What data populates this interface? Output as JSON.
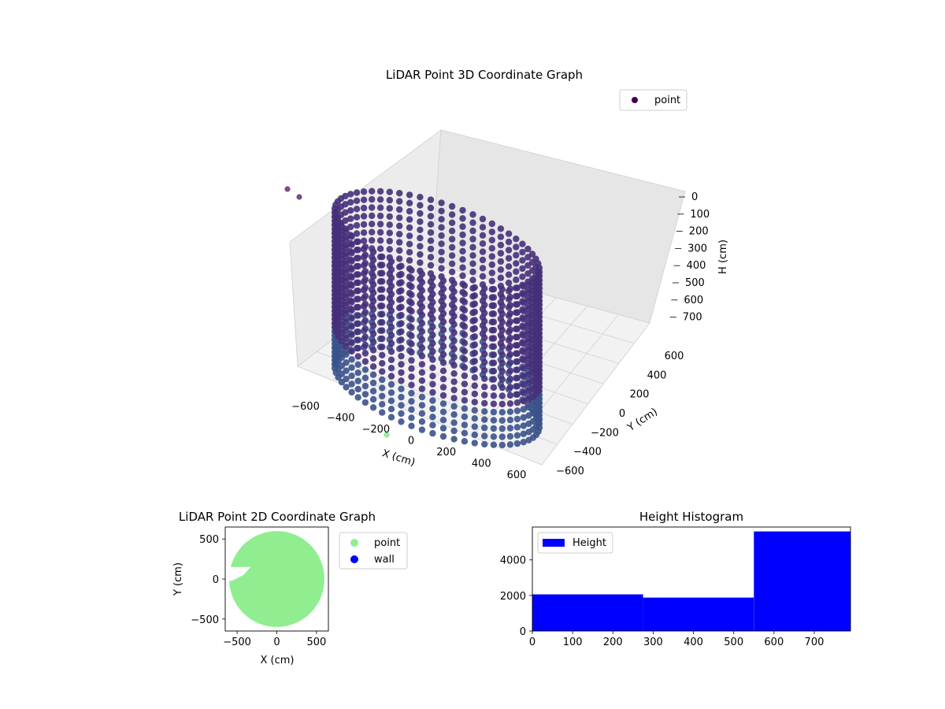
{
  "chart_data": [
    {
      "type": "scatter3d",
      "title": "LiDAR Point 3D Coordinate Graph",
      "xlabel": "X (cm)",
      "ylabel": "Y (cm)",
      "zlabel": "H (cm)",
      "xticks": [
        "−600",
        "−400",
        "−200",
        "0",
        "200",
        "400",
        "600"
      ],
      "yticks": [
        "−600",
        "−400",
        "−200",
        "0",
        "200",
        "400",
        "600"
      ],
      "zticks": [
        "0",
        "100",
        "200",
        "300",
        "400",
        "500",
        "600",
        "700"
      ],
      "xlim": [
        -650,
        650
      ],
      "ylim": [
        -650,
        650
      ],
      "zlim": [
        0,
        780
      ],
      "z_inverted": true,
      "legend": {
        "labels": [
          "point"
        ],
        "position": "upper right"
      },
      "colormap": "viridis",
      "colors": {
        "dark": "#440154",
        "mid": "#3b528b",
        "wall": "#46307a",
        "stray": "#90ee90"
      },
      "series": [
        {
          "name": "point",
          "shape": "cylindrical wall",
          "radius": 560,
          "h_range": [
            0,
            780
          ]
        }
      ]
    },
    {
      "type": "scatter",
      "title": "LiDAR Point 2D Coordinate Graph",
      "xlabel": "X (cm)",
      "ylabel": "Y (cm)",
      "xticks": [
        "−500",
        "0",
        "500"
      ],
      "yticks": [
        "500",
        "0",
        "−500"
      ],
      "xlim": [
        -650,
        650
      ],
      "ylim": [
        -650,
        650
      ],
      "legend": {
        "labels": [
          "point",
          "wall"
        ],
        "position": "outside right",
        "colors": [
          "#90ee90",
          "#0000ff"
        ]
      },
      "series": [
        {
          "name": "point",
          "color": "#90ee90",
          "shape": "filled disc",
          "radius": 600
        },
        {
          "name": "wall",
          "color": "#0000ff",
          "values": []
        }
      ]
    },
    {
      "type": "histogram",
      "title": "Height Histogram",
      "xlabel": "",
      "ylabel": "",
      "xticks": [
        "0",
        "100",
        "200",
        "300",
        "400",
        "500",
        "600",
        "700"
      ],
      "yticks": [
        "0",
        "2000",
        "4000"
      ],
      "xlim": [
        0,
        790
      ],
      "ylim": [
        0,
        5850
      ],
      "bins": [
        {
          "from": 0,
          "to": 275,
          "count": 2060
        },
        {
          "from": 275,
          "to": 550,
          "count": 1880
        },
        {
          "from": 550,
          "to": 790,
          "count": 5600
        }
      ],
      "color": "#0000ff",
      "legend": {
        "labels": [
          "Height"
        ],
        "position": "upper left"
      }
    }
  ]
}
